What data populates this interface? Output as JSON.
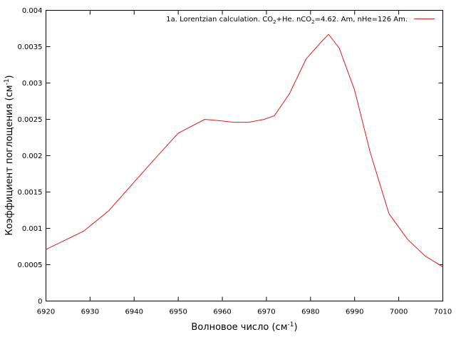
{
  "chart_data": {
    "type": "line",
    "title": "",
    "xlabel": "Волновое число (см",
    "xlabel_sup": "-1",
    "xlabel_tail": ")",
    "ylabel": "Коэффициент поглощения (см",
    "ylabel_sup": "-1",
    "ylabel_tail": ")",
    "xlim": [
      6920,
      7010
    ],
    "ylim": [
      0,
      0.004
    ],
    "x_ticks": [
      6920,
      6930,
      6940,
      6950,
      6960,
      6970,
      6980,
      6990,
      7000,
      7010
    ],
    "x_tick_labels": [
      "6920",
      "6930",
      "6940",
      "6950",
      "6960",
      "6970",
      "6980",
      "6990",
      "7000",
      "7010"
    ],
    "y_ticks": [
      0,
      0.0005,
      0.001,
      0.0015,
      0.002,
      0.0025,
      0.003,
      0.0035,
      0.004
    ],
    "y_tick_labels": [
      "0",
      "0.0005",
      "0.001",
      "0.0015",
      "0.002",
      "0.0025",
      "0.003",
      "0.0035",
      "0.004"
    ],
    "grid": false,
    "legend_position": "top-right",
    "legend": {
      "part1": "1a. Lorentzian calculation. CO",
      "sub1": "2",
      "part2": "+He. nCO",
      "sub2": "2",
      "part3": "=4.62. Am, nHe=126 Am."
    },
    "series": [
      {
        "name": "1a. Lorentzian calculation. CO2+He. nCO2=4.62. Am, nHe=126 Am.",
        "color": "#e41a1c",
        "x": [
          6920,
          6928.5,
          6934.2,
          6944,
          6950,
          6956,
          6959.5,
          6962.5,
          6966,
          6969.5,
          6971.8,
          6975.2,
          6979,
          6982.5,
          6984.1,
          6986.5,
          6990,
          6993.5,
          6997.8,
          7002,
          7006,
          7010
        ],
        "y": [
          0.00071,
          0.00096,
          0.00124,
          0.00191,
          0.00231,
          0.0025,
          0.00248,
          0.00246,
          0.00246,
          0.0025,
          0.00255,
          0.00285,
          0.00333,
          0.00357,
          0.00367,
          0.00348,
          0.0029,
          0.00205,
          0.0012,
          0.00085,
          0.00062,
          0.00047
        ]
      }
    ]
  }
}
